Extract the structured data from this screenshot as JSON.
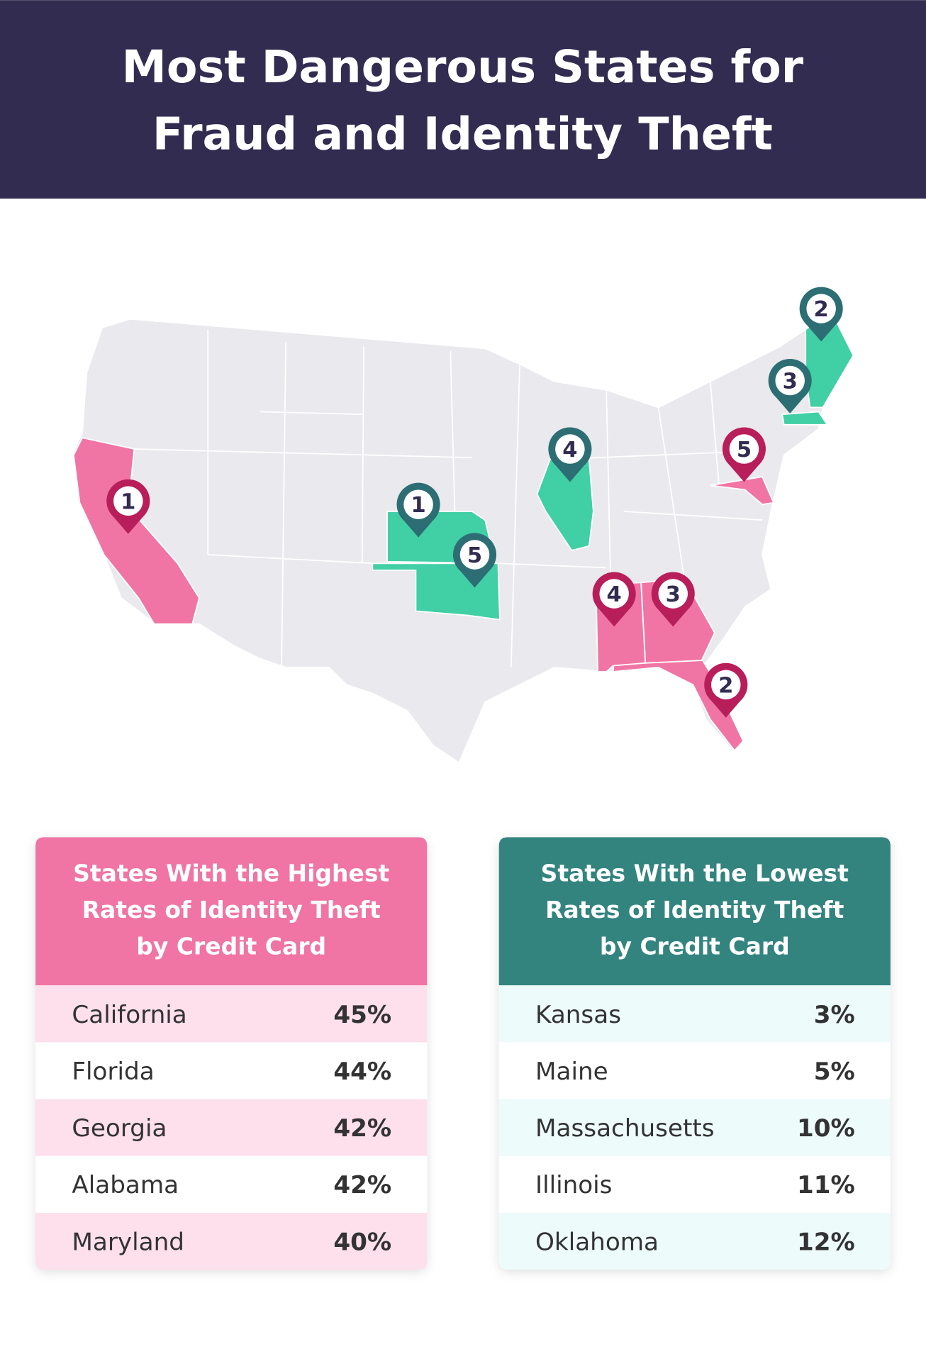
{
  "header": {
    "title_lines": [
      "Most Dangerous States for",
      "Fraud and Identity Theft"
    ]
  },
  "map": {
    "highest_pins": [
      "1",
      "2",
      "3",
      "4",
      "5"
    ],
    "lowest_pins": [
      "1",
      "2",
      "3",
      "4",
      "5"
    ]
  },
  "tables": [
    {
      "title_lines": [
        "States With the Highest",
        "Rates of Identity Theft",
        "by Credit Card"
      ],
      "rows": [
        [
          "California",
          "45%"
        ],
        [
          "Florida",
          "44%"
        ],
        [
          "Georgia",
          "42%"
        ],
        [
          "Alabama",
          "42%"
        ],
        [
          "Maryland",
          "40%"
        ]
      ]
    },
    {
      "title_lines": [
        "States With the Lowest",
        "Rates of Identity Theft",
        "by Credit Card"
      ],
      "rows": [
        [
          "Kansas",
          "3%"
        ],
        [
          "Maine",
          "5%"
        ],
        [
          "Massachusetts",
          "10%"
        ],
        [
          "Illinois",
          "11%"
        ],
        [
          "Oklahoma",
          "12%"
        ]
      ]
    }
  ]
}
